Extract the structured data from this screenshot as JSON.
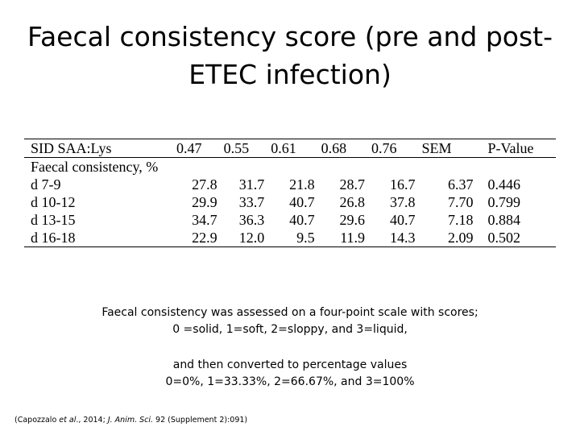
{
  "title": {
    "line1": "Faecal consistency score (pre and post-",
    "line2": "ETEC infection)"
  },
  "table": {
    "headers": [
      "SID SAA:Lys",
      "0.47",
      "0.55",
      "0.61",
      "0.68",
      "0.76",
      "SEM",
      "P-Value"
    ],
    "section_label": "Faecal consistency, %",
    "rows": [
      [
        "d 7-9",
        "27.8",
        "31.7",
        "21.8",
        "28.7",
        "16.7",
        "6.37",
        "0.446"
      ],
      [
        "d 10-12",
        "29.9",
        "33.7",
        "40.7",
        "26.8",
        "37.8",
        "7.70",
        "0.799"
      ],
      [
        "d 13-15",
        "34.7",
        "36.3",
        "40.7",
        "29.6",
        "40.7",
        "7.18",
        "0.884"
      ],
      [
        "d 16-18",
        "22.9",
        "12.0",
        "9.5",
        "11.9",
        "14.3",
        "2.09",
        "0.502"
      ]
    ]
  },
  "notes": {
    "scale_line1": "Faecal consistency was assessed on a four-point scale with scores;",
    "scale_line2": "0 =solid, 1=soft, 2=sloppy, and 3=liquid,",
    "conv_line1": "and then converted to percentage values",
    "conv_line2": "0=0%, 1=33.33%, 2=66.67%, and 3=100%"
  },
  "citation": {
    "prefix": "(Capozzalo ",
    "et_al": "et al",
    "middle": "., 2014; ",
    "journal": "J. Anim. Sci.",
    "suffix": " 92 (Supplement 2):091)"
  }
}
